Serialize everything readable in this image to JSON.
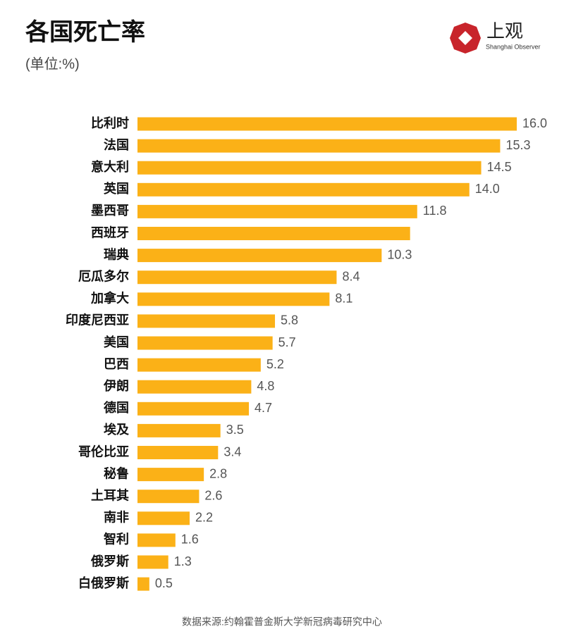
{
  "chart_data": {
    "type": "bar",
    "orientation": "horizontal",
    "title": "各国死亡率",
    "subtitle": "(单位:%)",
    "logo_text": "上观",
    "logo_subtext": "Shanghai Observer",
    "source": "数据来源:约翰霍普金斯大学新冠病毒研究中心",
    "categories": [
      "比利时",
      "法国",
      "意大利",
      "英国",
      "墨西哥",
      "西班牙",
      "瑞典",
      "厄瓜多尔",
      "加拿大",
      "印度尼西亚",
      "美国",
      "巴西",
      "伊朗",
      "德国",
      "埃及",
      "哥伦比亚",
      "秘鲁",
      "土耳其",
      "南非",
      "智利",
      "俄罗斯",
      "白俄罗斯"
    ],
    "values": [
      16.0,
      15.3,
      14.5,
      14.0,
      11.8,
      11.5,
      10.3,
      8.4,
      8.1,
      5.8,
      5.7,
      5.2,
      4.8,
      4.7,
      3.5,
      3.4,
      2.8,
      2.6,
      2.2,
      1.6,
      1.3,
      0.5
    ],
    "value_labels": [
      "16.0",
      "15.3",
      "14.5",
      "14.0",
      "11.8",
      null,
      "10.3",
      "8.4",
      "8.1",
      "5.8",
      "5.7",
      "5.2",
      "4.8",
      "4.7",
      "3.5",
      "3.4",
      "2.8",
      "2.6",
      "2.2",
      "1.6",
      "1.3",
      "0.5"
    ],
    "color": "#fbb117",
    "xlim": [
      0,
      16
    ]
  }
}
